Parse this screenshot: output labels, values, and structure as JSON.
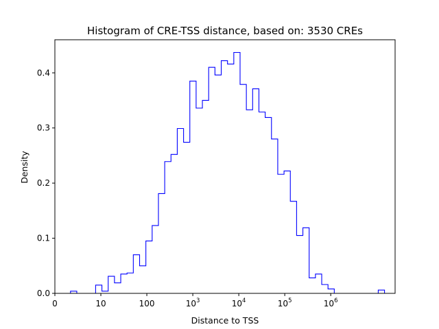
{
  "chart_data": {
    "type": "histogram-step",
    "title": "Histogram of CRE-TSS distance, based on: 3530 CREs",
    "xlabel": "Distance to TSS",
    "ylabel": "Density",
    "x_scale": "log (displayed as log10(distance+1))",
    "xlim_log10": [
      0,
      7.4
    ],
    "ylim": [
      0,
      0.46
    ],
    "x_ticks": [
      {
        "pos": 0,
        "base": "0",
        "exp": ""
      },
      {
        "pos": 1,
        "base": "10",
        "exp": ""
      },
      {
        "pos": 2,
        "base": "100",
        "exp": ""
      },
      {
        "pos": 3,
        "base": "10",
        "exp": "3"
      },
      {
        "pos": 4,
        "base": "10",
        "exp": "4"
      },
      {
        "pos": 5,
        "base": "10",
        "exp": "5"
      },
      {
        "pos": 6,
        "base": "10",
        "exp": "6"
      }
    ],
    "y_ticks": [
      "0.0",
      "0.1",
      "0.2",
      "0.3",
      "0.4"
    ],
    "y_tick_values": [
      0.0,
      0.1,
      0.2,
      0.3,
      0.4
    ],
    "bin_width_log10": 0.1366,
    "bin_start_log10": 0.34,
    "densities": [
      0.004,
      0.0,
      0.0,
      0.0,
      0.015,
      0.004,
      0.031,
      0.019,
      0.035,
      0.037,
      0.07,
      0.05,
      0.095,
      0.123,
      0.181,
      0.239,
      0.252,
      0.299,
      0.274,
      0.385,
      0.336,
      0.35,
      0.41,
      0.396,
      0.422,
      0.416,
      0.437,
      0.379,
      0.333,
      0.371,
      0.329,
      0.319,
      0.28,
      0.216,
      0.222,
      0.167,
      0.105,
      0.119,
      0.028,
      0.035,
      0.016,
      0.008,
      0.0,
      0.0,
      0.0,
      0.0,
      0.0,
      0.0,
      0.0,
      0.006
    ],
    "line_color": "#0000ff",
    "grid": false,
    "legend": "none"
  }
}
